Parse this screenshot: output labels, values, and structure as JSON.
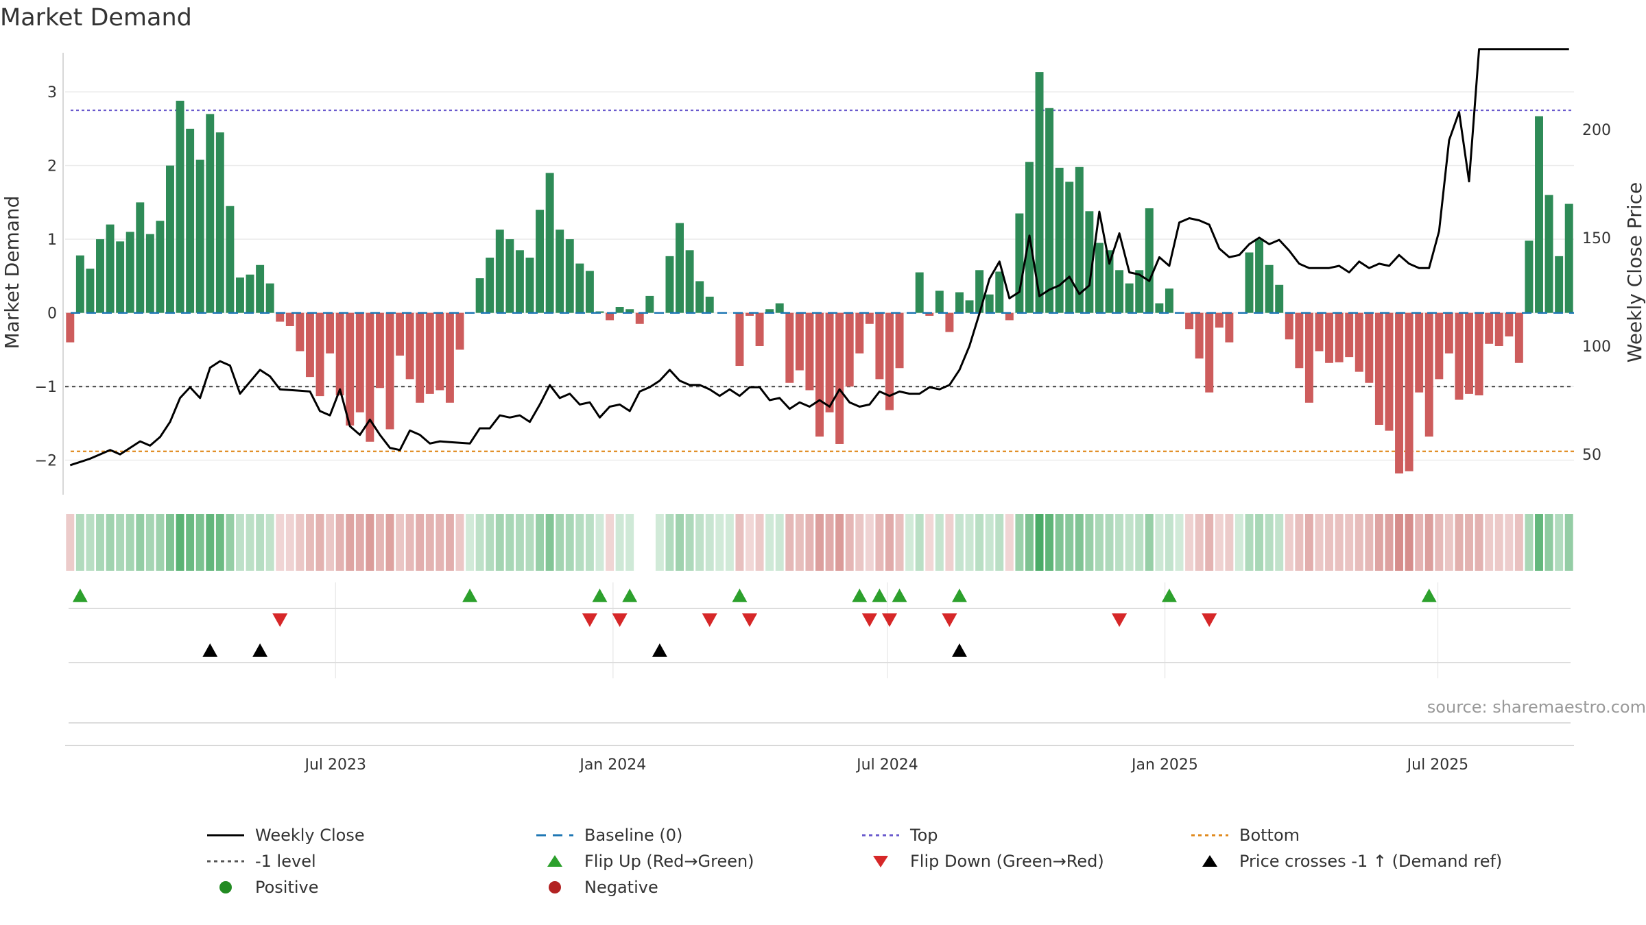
{
  "title": "Market Demand",
  "source_label": "source: sharemaestro.com",
  "colors": {
    "positive_bar": "#2e8b57",
    "negative_bar": "#cd5c5c",
    "price_line": "#000000",
    "baseline": "#1f77b4",
    "top_line": "#6a5acd",
    "minus1_line": "#555555",
    "bottom_line": "#e08a1e",
    "flip_up": "#2ca02c",
    "flip_down": "#d62728",
    "cross": "#000000"
  },
  "chart_data": {
    "type": "bar",
    "title": "Market Demand",
    "ylabel": "Market Demand",
    "y2label": "Weekly Close Price",
    "ylim": [
      -2.45,
      3.55
    ],
    "y2lim": [
      32,
      236
    ],
    "yticks": [
      3,
      2,
      1,
      0,
      -1,
      -2
    ],
    "y2ticks": [
      200,
      150,
      100,
      50
    ],
    "x_date_range": [
      "2023-01-06",
      "2025-09-26"
    ],
    "x_ticks": [
      {
        "label": "Jul 2023",
        "date": "2023-07-01"
      },
      {
        "label": "Jan 2024",
        "date": "2024-01-01"
      },
      {
        "label": "Jul 2024",
        "date": "2024-07-01"
      },
      {
        "label": "Jan 2025",
        "date": "2025-01-01"
      },
      {
        "label": "Jul 2025",
        "date": "2025-07-01"
      }
    ],
    "reference_lines": {
      "top": 2.75,
      "minus_one": -1.0,
      "bottom": -1.88,
      "baseline": 0
    },
    "demand": [
      -0.4,
      0.78,
      0.6,
      1.0,
      1.2,
      0.97,
      1.1,
      1.5,
      1.07,
      1.25,
      2.0,
      2.88,
      2.5,
      2.08,
      2.7,
      2.45,
      1.45,
      0.48,
      0.52,
      0.65,
      0.4,
      -0.12,
      -0.18,
      -0.52,
      -0.87,
      -1.13,
      -0.55,
      -1.12,
      -1.53,
      -1.35,
      -1.75,
      -1.02,
      -1.58,
      -0.58,
      -0.9,
      -1.22,
      -1.1,
      -1.05,
      -1.22,
      -0.5,
      0,
      0.47,
      0.75,
      1.13,
      1.0,
      0.85,
      0.75,
      1.4,
      1.9,
      1.13,
      1.0,
      0.67,
      0.57,
      0.02,
      -0.1,
      0.08,
      0.05,
      -0.15,
      0.23,
      0.0,
      0.77,
      1.22,
      0.85,
      0.43,
      0.22,
      0.0,
      0.0,
      -0.72,
      -0.04,
      -0.45,
      0.05,
      0.13,
      -0.95,
      -0.78,
      -1.05,
      -1.68,
      -1.35,
      -1.78,
      -1.0,
      -0.55,
      -0.15,
      -0.9,
      -1.32,
      -0.75,
      0.0,
      0.55,
      -0.04,
      0.3,
      -0.26,
      0.28,
      0.17,
      0.58,
      0.25,
      0.56,
      -0.1,
      1.35,
      2.05,
      3.27,
      2.78,
      1.97,
      1.78,
      1.98,
      1.38,
      0.95,
      0.85,
      0.58,
      0.4,
      0.58,
      1.42,
      0.13,
      0.33,
      0.0,
      -0.22,
      -0.62,
      -1.08,
      -0.2,
      -0.4,
      0.0,
      0.82,
      1.0,
      0.65,
      0.38,
      -0.36,
      -0.75,
      -1.22,
      -0.52,
      -0.68,
      -0.67,
      -0.6,
      -0.8,
      -0.95,
      -1.52,
      -1.6,
      -2.18,
      -2.15,
      -1.08,
      -1.68,
      -0.9,
      -0.55,
      -1.18,
      -1.1,
      -1.12,
      -0.42,
      -0.45,
      -0.32,
      -0.68,
      0.98,
      2.67,
      1.6,
      0.77,
      1.48
    ],
    "price_knots": [
      [
        0,
        45
      ],
      [
        2,
        48
      ],
      [
        4,
        52
      ],
      [
        5,
        50
      ],
      [
        7,
        56
      ],
      [
        8,
        54
      ],
      [
        9,
        58
      ],
      [
        10,
        65
      ],
      [
        11,
        76
      ],
      [
        12,
        81
      ],
      [
        13,
        76
      ],
      [
        14,
        90
      ],
      [
        15,
        93
      ],
      [
        16,
        91
      ],
      [
        17,
        78
      ],
      [
        19,
        89
      ],
      [
        20,
        86
      ],
      [
        21,
        80
      ],
      [
        24,
        79
      ],
      [
        25,
        70
      ],
      [
        26,
        68
      ],
      [
        27,
        80
      ],
      [
        28,
        63
      ],
      [
        29,
        59
      ],
      [
        30,
        66
      ],
      [
        31,
        59
      ],
      [
        32,
        53
      ],
      [
        33,
        52
      ],
      [
        34,
        61
      ],
      [
        35,
        59
      ],
      [
        36,
        55
      ],
      [
        37,
        56
      ],
      [
        40,
        55
      ],
      [
        41,
        62
      ],
      [
        42,
        62
      ],
      [
        43,
        68
      ],
      [
        44,
        67
      ],
      [
        45,
        68
      ],
      [
        46,
        65
      ],
      [
        47,
        73
      ],
      [
        48,
        82
      ],
      [
        49,
        76
      ],
      [
        50,
        78
      ],
      [
        51,
        73
      ],
      [
        52,
        74
      ],
      [
        53,
        67
      ],
      [
        54,
        72
      ],
      [
        55,
        73
      ],
      [
        56,
        70
      ],
      [
        57,
        79
      ],
      [
        58,
        81
      ],
      [
        59,
        84
      ],
      [
        60,
        89
      ],
      [
        61,
        84
      ],
      [
        62,
        82
      ],
      [
        63,
        82
      ],
      [
        64,
        80
      ],
      [
        65,
        77
      ],
      [
        66,
        80
      ],
      [
        67,
        77
      ],
      [
        68,
        81
      ],
      [
        69,
        81
      ],
      [
        70,
        75
      ],
      [
        71,
        76
      ],
      [
        72,
        71
      ],
      [
        73,
        74
      ],
      [
        74,
        72
      ],
      [
        75,
        75
      ],
      [
        76,
        72
      ],
      [
        77,
        80
      ],
      [
        78,
        74
      ],
      [
        79,
        72
      ],
      [
        80,
        73
      ],
      [
        81,
        79
      ],
      [
        82,
        77
      ],
      [
        83,
        79
      ],
      [
        84,
        78
      ],
      [
        85,
        78
      ],
      [
        86,
        81
      ],
      [
        87,
        80
      ],
      [
        88,
        82
      ],
      [
        89,
        89
      ],
      [
        90,
        100
      ],
      [
        91,
        115
      ],
      [
        92,
        131
      ],
      [
        93,
        139
      ],
      [
        94,
        122
      ],
      [
        95,
        125
      ],
      [
        96,
        151
      ],
      [
        97,
        123
      ],
      [
        98,
        126
      ],
      [
        99,
        128
      ],
      [
        100,
        132
      ],
      [
        101,
        124
      ],
      [
        102,
        128
      ],
      [
        103,
        162
      ],
      [
        104,
        138
      ],
      [
        105,
        152
      ],
      [
        106,
        134
      ],
      [
        107,
        133
      ],
      [
        108,
        130
      ],
      [
        109,
        141
      ],
      [
        110,
        137
      ],
      [
        111,
        157
      ],
      [
        112,
        159
      ],
      [
        113,
        158
      ],
      [
        114,
        156
      ],
      [
        115,
        145
      ],
      [
        116,
        141
      ],
      [
        117,
        142
      ],
      [
        118,
        147
      ],
      [
        119,
        150
      ],
      [
        120,
        147
      ],
      [
        121,
        149
      ],
      [
        122,
        144
      ],
      [
        123,
        138
      ],
      [
        124,
        136
      ],
      [
        125,
        136
      ],
      [
        126,
        136
      ],
      [
        127,
        137
      ],
      [
        128,
        134
      ],
      [
        129,
        139
      ],
      [
        130,
        136
      ],
      [
        131,
        138
      ],
      [
        132,
        137
      ],
      [
        133,
        142
      ],
      [
        134,
        138
      ],
      [
        135,
        136
      ],
      [
        136,
        136
      ],
      [
        137,
        153
      ],
      [
        138,
        195
      ],
      [
        139,
        208
      ],
      [
        140,
        176
      ],
      [
        141,
        237
      ]
    ],
    "flip_up_idx": [
      1,
      40,
      53,
      56,
      67,
      79,
      81,
      83,
      89,
      110,
      136
    ],
    "flip_down_idx": [
      21,
      52,
      55,
      64,
      68,
      80,
      82,
      88,
      105,
      114
    ],
    "price_cross_idx": [
      14,
      19,
      59,
      89
    ],
    "missing_strip_idx": [
      57,
      58
    ]
  },
  "legend": [
    {
      "label": "Weekly Close",
      "symbol": "solid-line",
      "color": "#000000"
    },
    {
      "label": "Baseline (0)",
      "symbol": "dashed-line",
      "color": "#1f77b4"
    },
    {
      "label": "Top",
      "symbol": "dotted-line",
      "color": "#6a5acd"
    },
    {
      "label": "Bottom",
      "symbol": "dotted-line",
      "color": "#e08a1e"
    },
    {
      "label": "-1 level",
      "symbol": "dotted-line",
      "color": "#555555"
    },
    {
      "label": "Flip Up (Red→Green)",
      "symbol": "triangle-up",
      "color": "#2ca02c"
    },
    {
      "label": "Flip Down (Green→Red)",
      "symbol": "triangle-down",
      "color": "#d62728"
    },
    {
      "label": "Price crosses -1 ↑ (Demand ref)",
      "symbol": "triangle-up",
      "color": "#000000"
    },
    {
      "label": "Positive",
      "symbol": "circle",
      "color": "#228b22"
    },
    {
      "label": "Negative",
      "symbol": "circle",
      "color": "#b22222"
    }
  ]
}
